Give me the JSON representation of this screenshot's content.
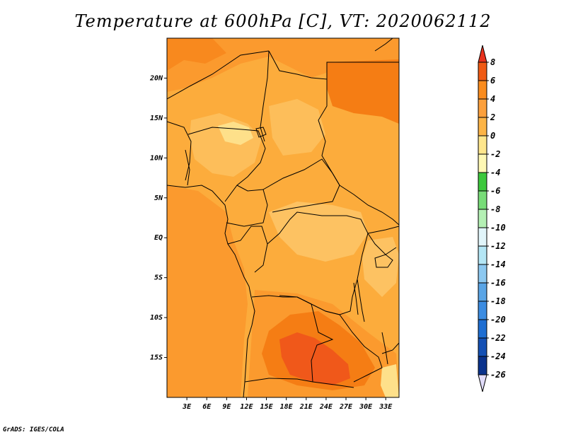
{
  "title": "Temperature at 600hPa [C], VT: 2020062112",
  "credit": "GrADS: IGES/COLA",
  "map": {
    "region": "Central & Southern Africa",
    "lon_range": [
      0,
      35
    ],
    "lat_range": [
      -20,
      25
    ],
    "lat_ticks": [
      {
        "value": 20,
        "label": "20N"
      },
      {
        "value": 15,
        "label": "15N"
      },
      {
        "value": 10,
        "label": "10N"
      },
      {
        "value": 5,
        "label": "5N"
      },
      {
        "value": 0,
        "label": "EQ"
      },
      {
        "value": -5,
        "label": "5S"
      },
      {
        "value": -10,
        "label": "10S"
      },
      {
        "value": -15,
        "label": "15S"
      }
    ],
    "lon_ticks": [
      {
        "value": 3,
        "label": "3E"
      },
      {
        "value": 6,
        "label": "6E"
      },
      {
        "value": 9,
        "label": "9E"
      },
      {
        "value": 12,
        "label": "12E"
      },
      {
        "value": 15,
        "label": "15E"
      },
      {
        "value": 18,
        "label": "18E"
      },
      {
        "value": 21,
        "label": "21E"
      },
      {
        "value": 24,
        "label": "24E"
      },
      {
        "value": 27,
        "label": "27E"
      },
      {
        "value": 30,
        "label": "30E"
      },
      {
        "value": 33,
        "label": "33E"
      }
    ],
    "background_color": "#fcac3c"
  },
  "colorbar": {
    "labels": [
      "8",
      "6",
      "4",
      "2",
      "0",
      "-2",
      "-4",
      "-6",
      "-8",
      "-10",
      "-12",
      "-14",
      "-16",
      "-18",
      "-20",
      "-22",
      "-24",
      "-26"
    ],
    "colors": [
      "#e8321e",
      "#f05a14",
      "#fa8c1e",
      "#fca03c",
      "#fcb446",
      "#fee68c",
      "#fef8b4",
      "#3cc83c",
      "#78dc78",
      "#b4f0b4",
      "#e1f5fa",
      "#b4e6f5",
      "#8cc8f0",
      "#5aa5e6",
      "#3c8ce1",
      "#1e6ed2",
      "#1450b4",
      "#0a328c",
      "#000080"
    ],
    "top_arrow_color": "#e8321e",
    "bottom_arrow_color": "#e1dcfa"
  }
}
